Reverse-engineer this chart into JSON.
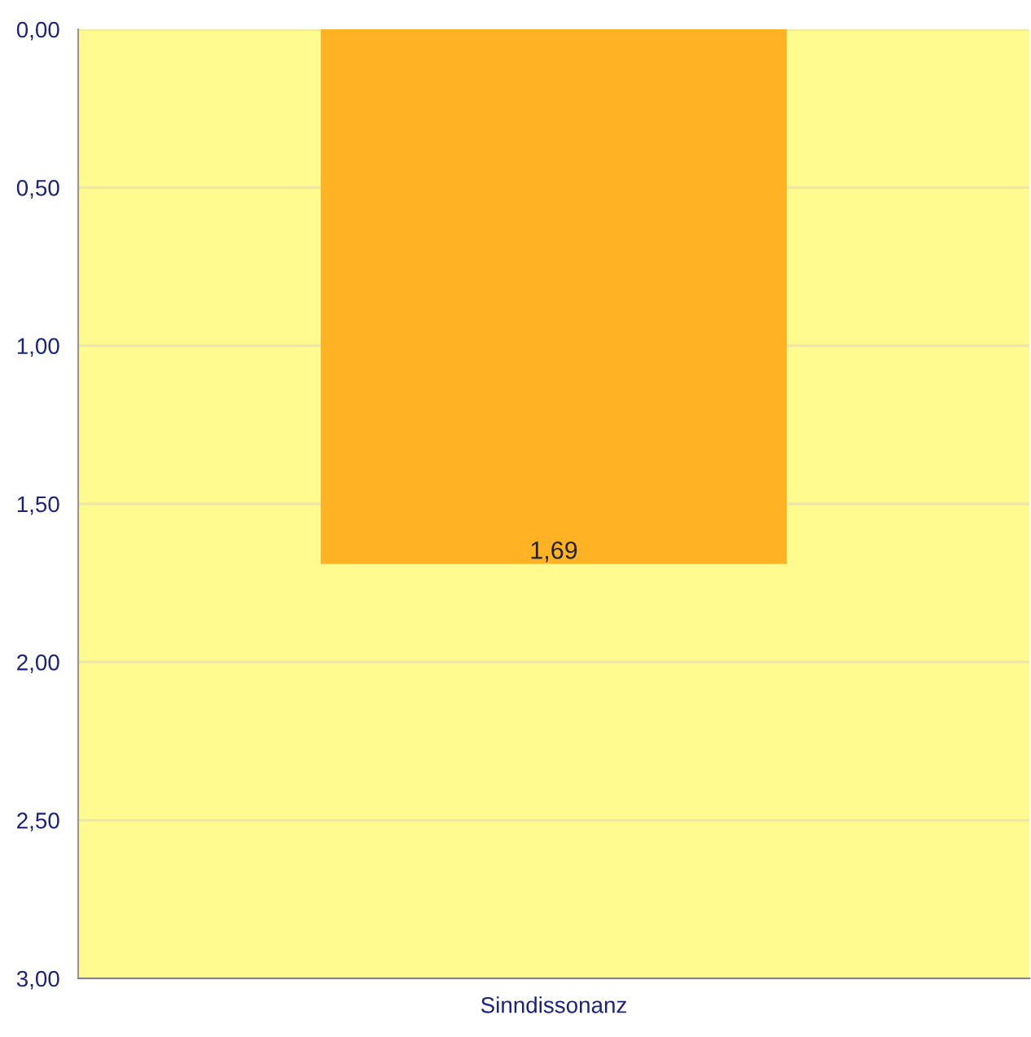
{
  "chart_data": {
    "type": "bar",
    "categories": [
      "Sinndissonanz"
    ],
    "values": [
      1.69
    ],
    "value_labels": [
      "1,69"
    ],
    "color": "#ffb224",
    "ylim": [
      3,
      0
    ],
    "yticks": [
      {
        "value": 0,
        "label": "0,00"
      },
      {
        "value": 0.5,
        "label": "0,50"
      },
      {
        "value": 1,
        "label": "1,00"
      },
      {
        "value": 1.5,
        "label": "1,50"
      },
      {
        "value": 2,
        "label": "2,00"
      },
      {
        "value": 2.5,
        "label": "2,50"
      },
      {
        "value": 3,
        "label": "3,00"
      }
    ],
    "grid": "y",
    "legend": false
  }
}
